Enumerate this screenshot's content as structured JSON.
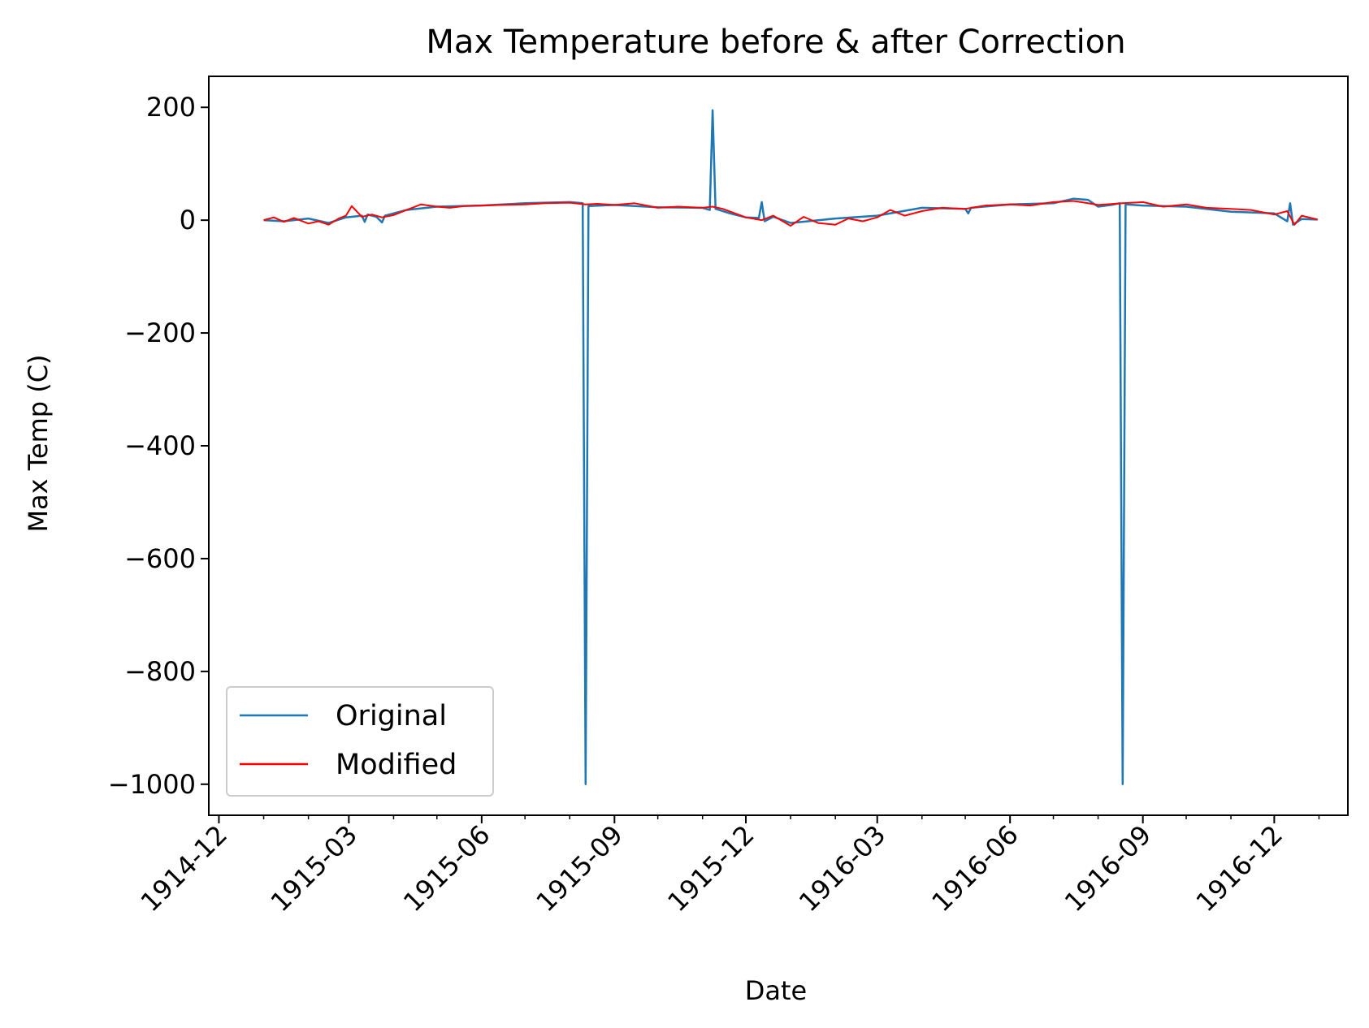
{
  "chart_data": {
    "type": "line",
    "title": "Max Temperature before & after Correction",
    "xlabel": "Date",
    "ylabel": "Max Temp (C)",
    "xlim": [
      "1914-11-24",
      "1917-01-21"
    ],
    "ylim": [
      -1055,
      255
    ],
    "x_ticks": [
      "1914-12",
      "1915-03",
      "1915-06",
      "1915-09",
      "1915-12",
      "1916-03",
      "1916-06",
      "1916-09",
      "1916-12"
    ],
    "y_ticks": [
      200,
      0,
      -200,
      -400,
      -600,
      -800,
      -1000
    ],
    "y_tick_labels": [
      "200",
      "0",
      "−200",
      "−400",
      "−600",
      "−800",
      "−1000"
    ],
    "grid": false,
    "legend_position": "lower-left",
    "series": [
      {
        "name": "Original",
        "color": "#1f77b4",
        "x": [
          "1915-01-01",
          "1915-01-15",
          "1915-02-01",
          "1915-02-15",
          "1915-02-27",
          "1915-03-10",
          "1915-03-12",
          "1915-03-14",
          "1915-03-20",
          "1915-03-24",
          "1915-03-26",
          "1915-04-10",
          "1915-05-01",
          "1915-06-01",
          "1915-07-01",
          "1915-08-01",
          "1915-08-10",
          "1915-08-12",
          "1915-08-14",
          "1915-09-01",
          "1915-10-01",
          "1915-11-01",
          "1915-11-06",
          "1915-11-08",
          "1915-11-10",
          "1915-11-20",
          "1915-12-01",
          "1915-12-10",
          "1915-12-12",
          "1915-12-14",
          "1915-12-20",
          "1916-01-01",
          "1916-02-01",
          "1916-03-01",
          "1916-04-01",
          "1916-05-01",
          "1916-05-03",
          "1916-05-05",
          "1916-06-01",
          "1916-07-01",
          "1916-07-15",
          "1916-07-25",
          "1916-08-01",
          "1916-08-10",
          "1916-08-16",
          "1916-08-18",
          "1916-08-20",
          "1916-09-01",
          "1916-10-01",
          "1916-11-01",
          "1916-12-01",
          "1916-12-10",
          "1916-12-12",
          "1916-12-14",
          "1916-12-20",
          "1916-12-31"
        ],
        "values": [
          0,
          -2,
          3,
          -5,
          5,
          8,
          -3,
          10,
          6,
          -4,
          8,
          18,
          24,
          26,
          30,
          32,
          30,
          -1000,
          25,
          27,
          23,
          22,
          18,
          195,
          20,
          12,
          5,
          4,
          32,
          -2,
          6,
          -5,
          3,
          8,
          22,
          20,
          12,
          22,
          28,
          30,
          38,
          36,
          24,
          27,
          30,
          -1000,
          28,
          26,
          24,
          15,
          12,
          -2,
          30,
          -8,
          2,
          1
        ]
      },
      {
        "name": "Modified",
        "color": "#ff0000",
        "x": [
          "1915-01-01",
          "1915-01-08",
          "1915-01-15",
          "1915-01-22",
          "1915-02-01",
          "1915-02-08",
          "1915-02-15",
          "1915-02-22",
          "1915-02-27",
          "1915-03-03",
          "1915-03-10",
          "1915-03-17",
          "1915-03-24",
          "1915-04-01",
          "1915-04-10",
          "1915-04-20",
          "1915-05-01",
          "1915-05-10",
          "1915-05-20",
          "1915-06-01",
          "1915-06-15",
          "1915-07-01",
          "1915-07-15",
          "1915-08-01",
          "1915-08-12",
          "1915-08-20",
          "1915-09-01",
          "1915-09-15",
          "1915-10-01",
          "1915-10-15",
          "1915-11-01",
          "1915-11-08",
          "1915-11-15",
          "1915-12-01",
          "1915-12-12",
          "1915-12-20",
          "1916-01-01",
          "1916-01-10",
          "1916-01-20",
          "1916-02-01",
          "1916-02-10",
          "1916-02-20",
          "1916-03-01",
          "1916-03-10",
          "1916-03-20",
          "1916-04-01",
          "1916-04-15",
          "1916-05-01",
          "1916-05-15",
          "1916-06-01",
          "1916-06-15",
          "1916-07-01",
          "1916-07-15",
          "1916-07-25",
          "1916-08-01",
          "1916-08-18",
          "1916-09-01",
          "1916-09-15",
          "1916-10-01",
          "1916-10-15",
          "1916-11-01",
          "1916-11-15",
          "1916-12-01",
          "1916-12-10",
          "1916-12-15",
          "1916-12-20",
          "1916-12-31"
        ],
        "values": [
          0,
          5,
          -3,
          4,
          -6,
          -2,
          -8,
          3,
          8,
          25,
          6,
          10,
          5,
          9,
          18,
          28,
          24,
          22,
          25,
          26,
          27,
          28,
          30,
          31,
          28,
          29,
          27,
          30,
          22,
          24,
          22,
          24,
          20,
          5,
          0,
          8,
          -10,
          6,
          -5,
          -8,
          3,
          -2,
          5,
          18,
          8,
          16,
          22,
          20,
          26,
          28,
          26,
          32,
          34,
          30,
          27,
          30,
          32,
          24,
          28,
          22,
          20,
          18,
          10,
          16,
          -8,
          8,
          1
        ]
      }
    ]
  }
}
